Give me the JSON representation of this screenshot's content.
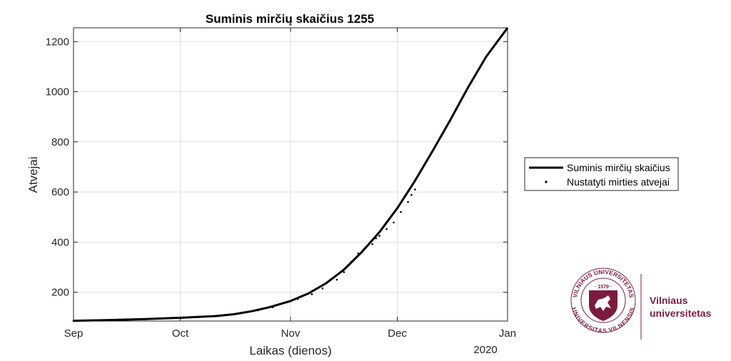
{
  "chart_data": {
    "type": "line",
    "title": "Suminis mirčių skaičius  1255",
    "xlabel": "Laikas (dienos)",
    "ylabel": "Atvejai",
    "x_ticks": [
      "Sep",
      "Oct",
      "Nov",
      "Dec",
      "Jan"
    ],
    "x_tick_days": [
      0,
      30,
      61,
      91,
      122
    ],
    "x_year_label": "2020",
    "x_range_days": [
      0,
      122
    ],
    "ylim": [
      85,
      1255
    ],
    "y_ticks": [
      200,
      400,
      600,
      800,
      1000,
      1200
    ],
    "grid": true,
    "legend_position": "right",
    "series": [
      {
        "name": "Suminis mirčių skaičius",
        "style": "solid-line",
        "color": "#000000",
        "x_day": [
          0,
          10,
          20,
          30,
          40,
          45,
          50,
          55,
          61,
          66,
          71,
          76,
          81,
          86,
          91,
          96,
          101,
          106,
          111,
          116,
          122
        ],
        "y": [
          86,
          89,
          93,
          98,
          105,
          112,
          124,
          140,
          165,
          195,
          236,
          290,
          360,
          440,
          535,
          645,
          765,
          890,
          1020,
          1140,
          1255
        ]
      },
      {
        "name": "Nustatyti mirties atvejai",
        "style": "dots",
        "color": "#000000",
        "x_day": [
          0,
          5,
          10,
          15,
          20,
          25,
          30,
          35,
          40,
          45,
          48,
          52,
          56,
          60,
          63,
          67,
          70,
          74,
          76,
          78,
          80,
          82,
          84,
          85,
          86,
          88,
          90,
          92,
          94,
          95,
          96
        ],
        "y": [
          86,
          87,
          88,
          90,
          92,
          95,
          97,
          101,
          106,
          113,
          120,
          128,
          140,
          160,
          173,
          192,
          215,
          250,
          280,
          320,
          355,
          378,
          392,
          415,
          425,
          452,
          478,
          520,
          560,
          588,
          610
        ]
      }
    ]
  },
  "logo": {
    "name_line1": "Vilniaus",
    "name_line2": "universitetas",
    "seal_top": "VILNIAUS UNIVERSITETAS",
    "seal_bottom": "UNIVERSITAS VILNENSIS",
    "seal_year": "· 1579 ·",
    "color": "#7b1c3e"
  }
}
